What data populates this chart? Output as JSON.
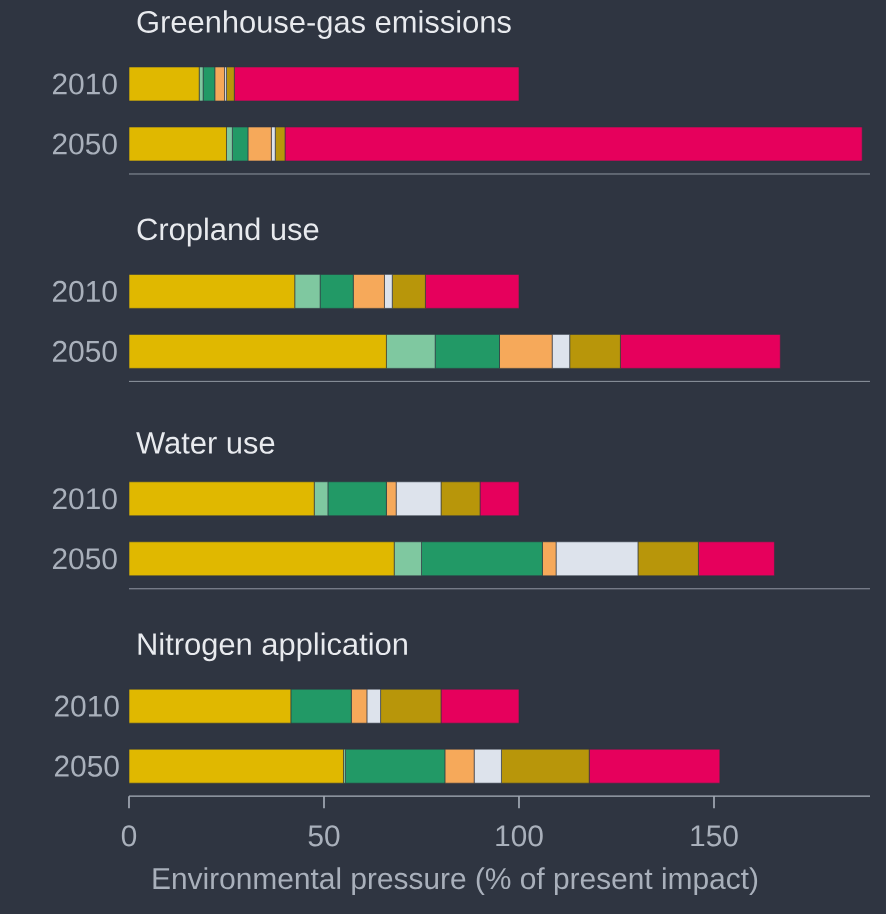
{
  "chart_data": [
    {
      "type": "bar",
      "orientation": "horizontal",
      "stacked": true,
      "title": "Greenhouse-gas emissions",
      "categories": [
        "2010",
        "2050"
      ],
      "xlim": [
        0,
        190
      ],
      "xticks": [
        0,
        50,
        100,
        150
      ],
      "tick_labels": "y",
      "series": [
        {
          "color": "#e0b800",
          "values": [
            18,
            25
          ]
        },
        {
          "color": "#7fc8a0",
          "values": [
            1,
            1.5
          ]
        },
        {
          "color": "#229966",
          "values": [
            3,
            4
          ]
        },
        {
          "color": "#f6a95a",
          "values": [
            2.5,
            6
          ]
        },
        {
          "color": "#dde3ec",
          "values": [
            0.5,
            1
          ]
        },
        {
          "color": "#b8960a",
          "values": [
            2,
            2.5
          ]
        },
        {
          "color": "#e6005c",
          "values": [
            73,
            148
          ]
        }
      ]
    },
    {
      "type": "bar",
      "orientation": "horizontal",
      "stacked": true,
      "title": "Cropland use",
      "categories": [
        "2010",
        "2050"
      ],
      "xlim": [
        0,
        190
      ],
      "xticks": [
        0,
        50,
        100,
        150
      ],
      "tick_labels": "y",
      "series": [
        {
          "color": "#e0b800",
          "values": [
            42.5,
            66
          ]
        },
        {
          "color": "#7fc8a0",
          "values": [
            6.5,
            12.5
          ]
        },
        {
          "color": "#229966",
          "values": [
            8.5,
            16.5
          ]
        },
        {
          "color": "#f6a95a",
          "values": [
            8,
            13.5
          ]
        },
        {
          "color": "#dde3ec",
          "values": [
            2,
            4.5
          ]
        },
        {
          "color": "#b8960a",
          "values": [
            8.5,
            13
          ]
        },
        {
          "color": "#e6005c",
          "values": [
            24,
            41
          ]
        }
      ]
    },
    {
      "type": "bar",
      "orientation": "horizontal",
      "stacked": true,
      "title": "Water use",
      "categories": [
        "2010",
        "2050"
      ],
      "xlim": [
        0,
        190
      ],
      "xticks": [
        0,
        50,
        100,
        150
      ],
      "tick_labels": "y",
      "series": [
        {
          "color": "#e0b800",
          "values": [
            47.5,
            68
          ]
        },
        {
          "color": "#7fc8a0",
          "values": [
            3.5,
            7
          ]
        },
        {
          "color": "#229966",
          "values": [
            15,
            31
          ]
        },
        {
          "color": "#f6a95a",
          "values": [
            2.5,
            3.5
          ]
        },
        {
          "color": "#dde3ec",
          "values": [
            11.5,
            21
          ]
        },
        {
          "color": "#b8960a",
          "values": [
            10,
            15.5
          ]
        },
        {
          "color": "#e6005c",
          "values": [
            10,
            19.5
          ]
        }
      ]
    },
    {
      "type": "bar",
      "orientation": "horizontal",
      "stacked": true,
      "title": "Nitrogen application",
      "xlabel": "Environmental pressure (% of present impact)",
      "categories": [
        "2010",
        "2050"
      ],
      "xlim": [
        0,
        190
      ],
      "xticks": [
        0,
        50,
        100,
        150
      ],
      "series": [
        {
          "color": "#e0b800",
          "values": [
            41.5,
            55
          ]
        },
        {
          "color": "#7fc8a0",
          "values": [
            0,
            0.5
          ]
        },
        {
          "color": "#229966",
          "values": [
            15.5,
            25.5
          ]
        },
        {
          "color": "#f6a95a",
          "values": [
            4,
            7.5
          ]
        },
        {
          "color": "#dde3ec",
          "values": [
            3.5,
            7
          ]
        },
        {
          "color": "#b8960a",
          "values": [
            15.5,
            22.5
          ]
        },
        {
          "color": "#e6005c",
          "values": [
            20,
            33.5
          ]
        }
      ]
    }
  ]
}
